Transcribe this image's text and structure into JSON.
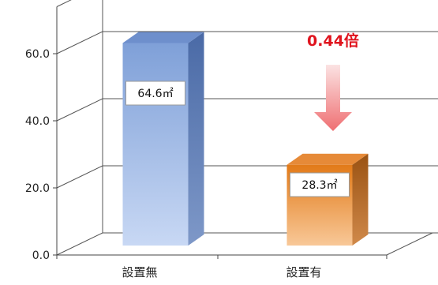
{
  "chart_data": {
    "type": "bar",
    "title": "",
    "xlabel": "",
    "ylabel": "",
    "categories": [
      "設置無",
      "設置有"
    ],
    "values": [
      64.6,
      28.3
    ],
    "data_labels": [
      "64.6㎡",
      "28.3㎡"
    ],
    "ylim": [
      0,
      60
    ],
    "yticks": [
      "0.0",
      "20.0",
      "40.0",
      "60.0"
    ],
    "grid": true,
    "legend": "none",
    "annotation": {
      "text": "0.44倍",
      "color": "#e0141e",
      "target_category": "設置有"
    },
    "bar_colors": [
      "#9fb8e6",
      "#e98a2c"
    ]
  }
}
